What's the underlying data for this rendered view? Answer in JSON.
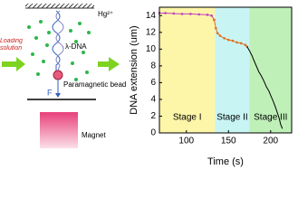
{
  "diagram": {
    "ion": "Hg²⁺",
    "inlet": "Loading solution",
    "dna": "λ-DNA",
    "bead": "Paramagnetic bead",
    "force": "F",
    "magnet": "Magnet"
  },
  "chart_data": {
    "type": "line",
    "xlabel": "Time (s)",
    "ylabel": "DNA extension (um)",
    "xlim": [
      68,
      225
    ],
    "xticks": [
      100,
      150,
      200
    ],
    "ylim": [
      0,
      15
    ],
    "yticks": [
      0,
      2,
      4,
      6,
      8,
      10,
      12,
      14
    ],
    "regions": [
      {
        "label": "Stage I",
        "start": 68,
        "end": 134,
        "color": "#fdf5a8"
      },
      {
        "label": "Stage II",
        "start": 134,
        "end": 175,
        "color": "#c8f4f4"
      },
      {
        "label": "Stage III",
        "start": 175,
        "end": 225,
        "color": "#bff0b8"
      }
    ],
    "series": [
      {
        "color": "#c040c0",
        "markers": true,
        "x": [
          68,
          75,
          85,
          95,
          105,
          115,
          125,
          130,
          133
        ],
        "values": [
          14.3,
          14.3,
          14.25,
          14.2,
          14.2,
          14.15,
          14.1,
          14.0,
          13.5
        ]
      },
      {
        "color": "#e07020",
        "markers": true,
        "x": [
          133,
          135,
          137,
          140,
          145,
          150,
          155,
          160,
          165,
          170,
          172
        ],
        "values": [
          13.5,
          12.5,
          11.9,
          11.6,
          11.3,
          11.1,
          11.0,
          10.8,
          10.7,
          10.5,
          10.3
        ]
      },
      {
        "color": "#000000",
        "markers": false,
        "x": [
          172,
          175,
          178,
          180,
          183,
          186,
          189,
          192,
          195,
          198,
          200,
          203,
          206,
          208,
          210,
          212,
          214
        ],
        "values": [
          10.3,
          9.8,
          9.2,
          8.7,
          8.0,
          7.3,
          6.8,
          6.2,
          5.5,
          5.0,
          4.5,
          3.8,
          3.0,
          2.4,
          1.8,
          1.0,
          0.5
        ]
      }
    ]
  }
}
